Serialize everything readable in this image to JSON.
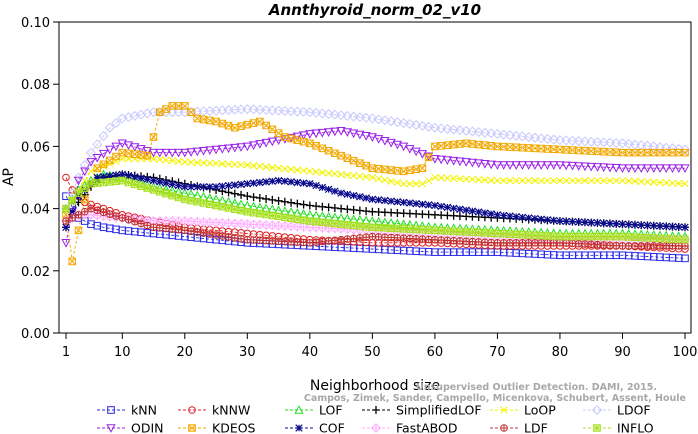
{
  "chart_data": {
    "type": "line",
    "title": "Annthyroid_norm_02_v10",
    "xlabel": "Neighborhood size",
    "ylabel": "AP",
    "xlim": [
      1,
      100
    ],
    "ylim": [
      0.0,
      0.1
    ],
    "xticks": [
      1,
      10,
      20,
      30,
      40,
      50,
      60,
      70,
      80,
      90,
      100
    ],
    "yticks": [
      "0.00",
      "0.02",
      "0.04",
      "0.06",
      "0.08",
      "0.10"
    ],
    "watermark": [
      "Campos, Zimek, Sander, Campello, Micenkova, Schubert, Assent, Houle",
      "Unsupervised Outlier Detection. DAMI, 2015."
    ],
    "grid": false,
    "series": [
      {
        "name": "kNN",
        "color": "#2a2ae8",
        "marker": "square",
        "points": [
          [
            1,
            0.044
          ],
          [
            3,
            0.037
          ],
          [
            5,
            0.035
          ],
          [
            7,
            0.034
          ],
          [
            10,
            0.033
          ],
          [
            15,
            0.032
          ],
          [
            20,
            0.031
          ],
          [
            30,
            0.029
          ],
          [
            40,
            0.028
          ],
          [
            50,
            0.027
          ],
          [
            60,
            0.026
          ],
          [
            70,
            0.026
          ],
          [
            80,
            0.025
          ],
          [
            90,
            0.025
          ],
          [
            100,
            0.024
          ]
        ]
      },
      {
        "name": "kNNW",
        "color": "#dd2020",
        "marker": "circle",
        "points": [
          [
            1,
            0.05
          ],
          [
            2,
            0.046
          ],
          [
            4,
            0.042
          ],
          [
            7,
            0.04
          ],
          [
            10,
            0.038
          ],
          [
            15,
            0.036
          ],
          [
            20,
            0.034
          ],
          [
            30,
            0.032
          ],
          [
            40,
            0.03
          ],
          [
            50,
            0.029
          ],
          [
            60,
            0.029
          ],
          [
            70,
            0.028
          ],
          [
            80,
            0.028
          ],
          [
            90,
            0.028
          ],
          [
            100,
            0.027
          ]
        ]
      },
      {
        "name": "LOF",
        "color": "#22dd22",
        "marker": "triangle-up",
        "points": [
          [
            1,
            0.04
          ],
          [
            3,
            0.046
          ],
          [
            5,
            0.049
          ],
          [
            7,
            0.051
          ],
          [
            10,
            0.05
          ],
          [
            15,
            0.047
          ],
          [
            20,
            0.045
          ],
          [
            30,
            0.041
          ],
          [
            40,
            0.038
          ],
          [
            50,
            0.036
          ],
          [
            60,
            0.034
          ],
          [
            70,
            0.033
          ],
          [
            80,
            0.032
          ],
          [
            90,
            0.032
          ],
          [
            100,
            0.031
          ]
        ]
      },
      {
        "name": "SimplifiedLOF",
        "color": "#000000",
        "marker": "plus",
        "points": [
          [
            1,
            0.034
          ],
          [
            3,
            0.042
          ],
          [
            5,
            0.047
          ],
          [
            7,
            0.05
          ],
          [
            10,
            0.051
          ],
          [
            15,
            0.05
          ],
          [
            20,
            0.048
          ],
          [
            30,
            0.044
          ],
          [
            40,
            0.041
          ],
          [
            50,
            0.039
          ],
          [
            60,
            0.038
          ],
          [
            70,
            0.037
          ],
          [
            80,
            0.036
          ],
          [
            90,
            0.035
          ],
          [
            100,
            0.034
          ]
        ]
      },
      {
        "name": "LoOP",
        "color": "#f2f200",
        "marker": "x",
        "points": [
          [
            1,
            0.04
          ],
          [
            5,
            0.052
          ],
          [
            10,
            0.056
          ],
          [
            15,
            0.056
          ],
          [
            20,
            0.055
          ],
          [
            30,
            0.054
          ],
          [
            40,
            0.052
          ],
          [
            50,
            0.05
          ],
          [
            55,
            0.048
          ],
          [
            58,
            0.048
          ],
          [
            60,
            0.05
          ],
          [
            70,
            0.049
          ],
          [
            80,
            0.049
          ],
          [
            90,
            0.049
          ],
          [
            100,
            0.048
          ]
        ]
      },
      {
        "name": "LDOF",
        "color": "#c8c8ff",
        "marker": "diamond",
        "points": [
          [
            1,
            0.04
          ],
          [
            3,
            0.05
          ],
          [
            5,
            0.058
          ],
          [
            8,
            0.066
          ],
          [
            10,
            0.069
          ],
          [
            15,
            0.071
          ],
          [
            20,
            0.071
          ],
          [
            30,
            0.072
          ],
          [
            40,
            0.071
          ],
          [
            50,
            0.069
          ],
          [
            60,
            0.066
          ],
          [
            70,
            0.064
          ],
          [
            80,
            0.062
          ],
          [
            90,
            0.061
          ],
          [
            100,
            0.059
          ]
        ]
      },
      {
        "name": "ODIN",
        "color": "#9a22e8",
        "marker": "triangle-down",
        "points": [
          [
            1,
            0.029
          ],
          [
            3,
            0.049
          ],
          [
            5,
            0.055
          ],
          [
            8,
            0.059
          ],
          [
            10,
            0.061
          ],
          [
            15,
            0.058
          ],
          [
            20,
            0.058
          ],
          [
            30,
            0.06
          ],
          [
            40,
            0.064
          ],
          [
            45,
            0.065
          ],
          [
            50,
            0.063
          ],
          [
            55,
            0.06
          ],
          [
            60,
            0.056
          ],
          [
            70,
            0.054
          ],
          [
            80,
            0.054
          ],
          [
            90,
            0.053
          ],
          [
            100,
            0.053
          ]
        ]
      },
      {
        "name": "KDEOS",
        "color": "#f2a800",
        "marker": "square-x",
        "points": [
          [
            1,
            0.038
          ],
          [
            2,
            0.023
          ],
          [
            4,
            0.043
          ],
          [
            6,
            0.053
          ],
          [
            10,
            0.058
          ],
          [
            14,
            0.057
          ],
          [
            15,
            0.063
          ],
          [
            16,
            0.071
          ],
          [
            18,
            0.073
          ],
          [
            20,
            0.073
          ],
          [
            22,
            0.069
          ],
          [
            25,
            0.068
          ],
          [
            28,
            0.066
          ],
          [
            32,
            0.068
          ],
          [
            36,
            0.063
          ],
          [
            40,
            0.061
          ],
          [
            45,
            0.057
          ],
          [
            50,
            0.053
          ],
          [
            55,
            0.052
          ],
          [
            58,
            0.053
          ],
          [
            60,
            0.06
          ],
          [
            65,
            0.061
          ],
          [
            70,
            0.06
          ],
          [
            80,
            0.059
          ],
          [
            90,
            0.058
          ],
          [
            100,
            0.058
          ]
        ]
      },
      {
        "name": "COF",
        "color": "#0a0a8c",
        "marker": "asterisk",
        "points": [
          [
            1,
            0.034
          ],
          [
            3,
            0.044
          ],
          [
            6,
            0.05
          ],
          [
            10,
            0.051
          ],
          [
            15,
            0.049
          ],
          [
            20,
            0.047
          ],
          [
            25,
            0.047
          ],
          [
            30,
            0.048
          ],
          [
            35,
            0.049
          ],
          [
            40,
            0.048
          ],
          [
            45,
            0.045
          ],
          [
            50,
            0.043
          ],
          [
            55,
            0.042
          ],
          [
            60,
            0.041
          ],
          [
            70,
            0.038
          ],
          [
            80,
            0.036
          ],
          [
            90,
            0.035
          ],
          [
            100,
            0.034
          ]
        ]
      },
      {
        "name": "FastABOD",
        "color": "#ffb0ff",
        "marker": "diamond-plus",
        "points": [
          [
            1,
            0.036
          ],
          [
            3,
            0.038
          ],
          [
            5,
            0.038
          ],
          [
            10,
            0.037
          ],
          [
            15,
            0.036
          ],
          [
            20,
            0.036
          ],
          [
            30,
            0.035
          ],
          [
            40,
            0.034
          ],
          [
            50,
            0.033
          ],
          [
            60,
            0.032
          ],
          [
            70,
            0.031
          ],
          [
            80,
            0.03
          ],
          [
            90,
            0.03
          ],
          [
            100,
            0.03
          ]
        ]
      },
      {
        "name": "LDF",
        "color": "#c03030",
        "marker": "circle-plus",
        "points": [
          [
            1,
            0.036
          ],
          [
            3,
            0.038
          ],
          [
            5,
            0.04
          ],
          [
            10,
            0.037
          ],
          [
            15,
            0.034
          ],
          [
            20,
            0.033
          ],
          [
            30,
            0.03
          ],
          [
            40,
            0.029
          ],
          [
            50,
            0.031
          ],
          [
            60,
            0.03
          ],
          [
            70,
            0.029
          ],
          [
            80,
            0.029
          ],
          [
            90,
            0.028
          ],
          [
            100,
            0.028
          ]
        ]
      },
      {
        "name": "INFLO",
        "color": "#a8e020",
        "marker": "square-star",
        "points": [
          [
            1,
            0.04
          ],
          [
            3,
            0.045
          ],
          [
            5,
            0.048
          ],
          [
            10,
            0.049
          ],
          [
            15,
            0.046
          ],
          [
            20,
            0.043
          ],
          [
            30,
            0.039
          ],
          [
            40,
            0.036
          ],
          [
            50,
            0.034
          ],
          [
            60,
            0.033
          ],
          [
            70,
            0.032
          ],
          [
            80,
            0.031
          ],
          [
            90,
            0.031
          ],
          [
            100,
            0.03
          ]
        ]
      }
    ],
    "legend_order": [
      [
        "kNN",
        "kNNW",
        "LOF",
        "SimplifiedLOF",
        "LoOP",
        "LDOF"
      ],
      [
        "ODIN",
        "KDEOS",
        "COF",
        "FastABOD",
        "LDF",
        "INFLO"
      ]
    ]
  }
}
